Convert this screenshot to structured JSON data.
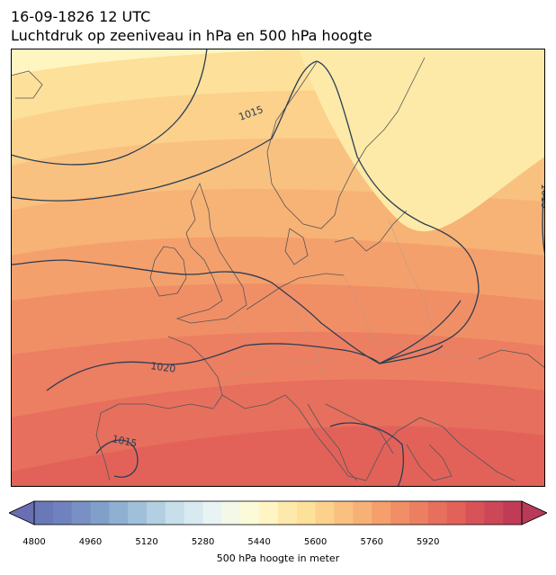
{
  "header": {
    "datetime": "16-09-1826 12 UTC",
    "subtitle": "Luchtdruk op zeeniveau in hPa en 500 hPa hoogte"
  },
  "map": {
    "isobar_labels": [
      "1015",
      "1020",
      "1015",
      "1015"
    ],
    "fill_colors": [
      "#fff5c0",
      "#feeaa8",
      "#fde09a",
      "#fbd18c",
      "#f9c180",
      "#f7b276",
      "#f4a06c",
      "#f08f66",
      "#ec7f61",
      "#e76f5d",
      "#e2625a"
    ],
    "isobar_color": "#2b3d55",
    "coast_color": "#555555"
  },
  "colorbar": {
    "label": "500 hPa hoogte in meter",
    "ticks": [
      "4800",
      "4960",
      "5120",
      "5280",
      "5440",
      "5600",
      "5760",
      "5920"
    ],
    "colors": [
      "#6a78b8",
      "#6f82bd",
      "#7890c3",
      "#80a0c9",
      "#8fb0d1",
      "#a0c0da",
      "#b3d0e2",
      "#c6dfea",
      "#d8eaf1",
      "#e8f3f3",
      "#f4f8e8",
      "#fbfbd8",
      "#fff5c4",
      "#fee9ac",
      "#fde09a",
      "#fbd18c",
      "#f9c080",
      "#f7b076",
      "#f49f6c",
      "#f08e66",
      "#ec7f61",
      "#e76f5d",
      "#e2625a",
      "#d85358",
      "#cc4757",
      "#c03c56"
    ],
    "extend_low_color": "#6a6fb3",
    "extend_high_color": "#b83a58"
  }
}
